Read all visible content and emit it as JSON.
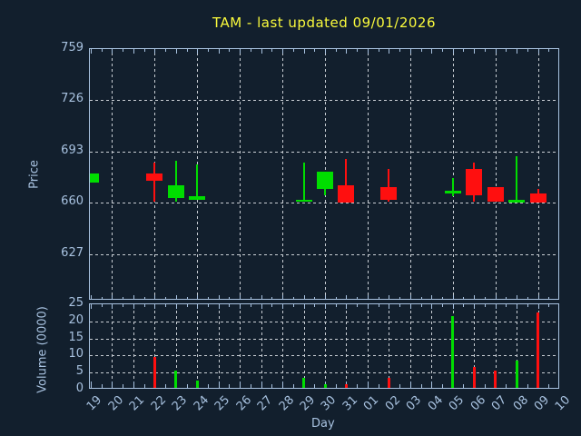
{
  "title": {
    "text": "TAM - last updated 09/01/2026"
  },
  "colors": {
    "background": "#121f2d",
    "axis": "#a8c2e0",
    "grid": "#c9ced4",
    "up": "#00dd00",
    "down": "#ff0f0f",
    "title": "#fafa3c"
  },
  "price_axis": {
    "label": "Price",
    "ticks": [
      759,
      726,
      693,
      660,
      627
    ],
    "ylim": [
      597,
      759
    ]
  },
  "volume_axis": {
    "label": "Volume (0000)",
    "ticks": [
      25,
      20,
      15,
      10,
      5,
      0
    ],
    "ylim": [
      0,
      25
    ]
  },
  "x_axis": {
    "label": "Day",
    "categories": [
      "19",
      "20",
      "21",
      "22",
      "23",
      "24",
      "25",
      "26",
      "27",
      "28",
      "29",
      "30",
      "31",
      "01",
      "02",
      "03",
      "04",
      "05",
      "06",
      "07",
      "08",
      "09",
      "10"
    ]
  },
  "chart_data": {
    "type": "candlestick",
    "subplots": [
      "price-candles",
      "volume-bars"
    ],
    "x": [
      "19",
      "20",
      "21",
      "22",
      "23",
      "24",
      "25",
      "26",
      "27",
      "28",
      "29",
      "30",
      "31",
      "01",
      "02",
      "03",
      "04",
      "05",
      "06",
      "07",
      "08",
      "09",
      "10"
    ],
    "grid": "dashed, vertical every 2nd day on price panel, every day on volume panel",
    "candles": [
      {
        "day": "19",
        "open": 673,
        "high": 679,
        "low": 673,
        "close": 679,
        "volume": 0
      },
      {
        "day": "22",
        "open": 679,
        "high": 686,
        "low": 661,
        "close": 674,
        "volume": 9
      },
      {
        "day": "23",
        "open": 663,
        "high": 687,
        "low": 661,
        "close": 671,
        "volume": 5
      },
      {
        "day": "24",
        "open": 662,
        "high": 685,
        "low": 662,
        "close": 664,
        "volume": 2
      },
      {
        "day": "29",
        "open": 661,
        "high": 686,
        "low": 661,
        "close": 662,
        "volume": 3
      },
      {
        "day": "30",
        "open": 669,
        "high": 680,
        "low": 665,
        "close": 680,
        "volume": 1
      },
      {
        "day": "31",
        "open": 671,
        "high": 688,
        "low": 660,
        "close": 660,
        "volume": 1
      },
      {
        "day": "02",
        "open": 670,
        "high": 682,
        "low": 661,
        "close": 662,
        "volume": 3
      },
      {
        "day": "05",
        "open": 666,
        "high": 676,
        "low": 664,
        "close": 668,
        "volume": 21
      },
      {
        "day": "06",
        "open": 682,
        "high": 686,
        "low": 661,
        "close": 665,
        "volume": 6
      },
      {
        "day": "07",
        "open": 670,
        "high": 670,
        "low": 661,
        "close": 661,
        "volume": 5
      },
      {
        "day": "08",
        "open": 660,
        "high": 690,
        "low": 660,
        "close": 662,
        "volume": 8
      },
      {
        "day": "09",
        "open": 666,
        "high": 669,
        "low": 660,
        "close": 660,
        "volume": 22
      }
    ]
  }
}
